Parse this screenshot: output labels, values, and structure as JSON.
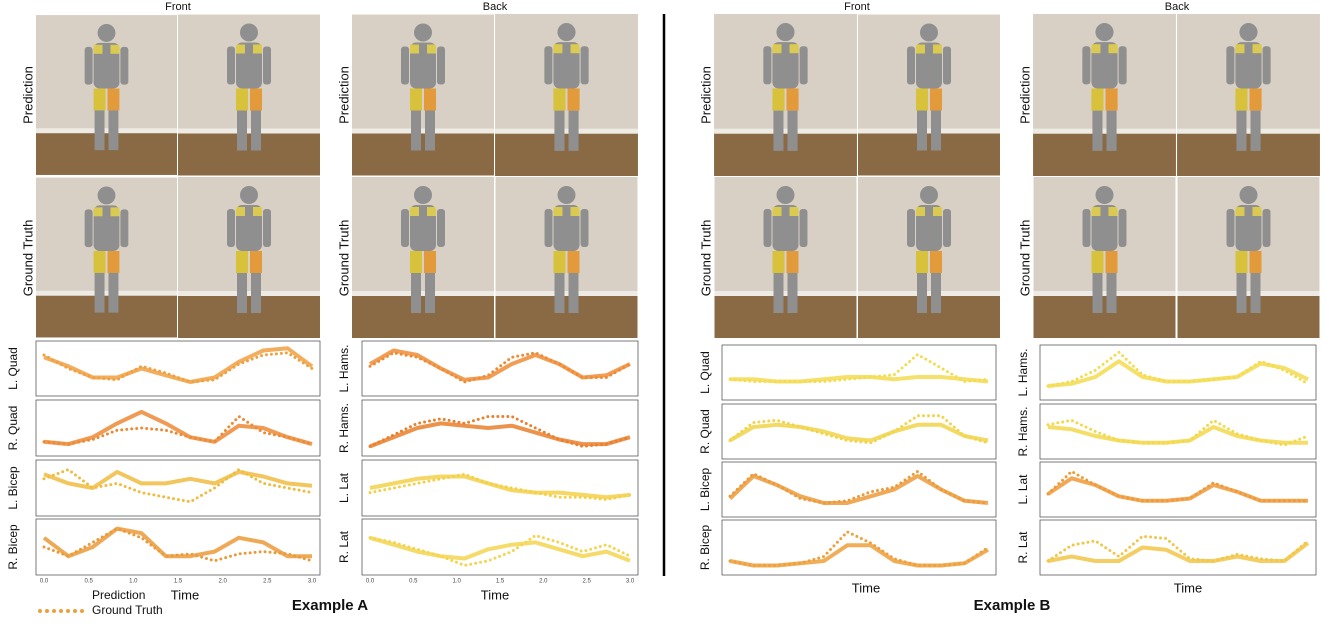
{
  "example_a": {
    "title": "Example A",
    "front": "Front",
    "back": "Back",
    "prediction_label": "Prediction",
    "ground_truth_label": "Ground Truth",
    "time_label": "Time",
    "x_ticks": [
      "0.0",
      "0.5",
      "1.0",
      "1.5",
      "2.0",
      "2.5",
      "3.0"
    ],
    "plots": [
      {
        "label": "L. Quad",
        "color": "#f0a040",
        "prediction": [
          0.75,
          0.55,
          0.3,
          0.3,
          0.5,
          0.35,
          0.2,
          0.3,
          0.65,
          0.9,
          0.95,
          0.55
        ],
        "ground_truth": [
          0.8,
          0.5,
          0.3,
          0.25,
          0.55,
          0.4,
          0.2,
          0.25,
          0.6,
          0.8,
          0.85,
          0.5
        ]
      },
      {
        "label": "R. Quad",
        "color": "#ec8a35",
        "prediction": [
          0.2,
          0.15,
          0.3,
          0.6,
          0.85,
          0.6,
          0.3,
          0.2,
          0.55,
          0.5,
          0.3,
          0.15
        ],
        "ground_truth": [
          0.2,
          0.15,
          0.25,
          0.45,
          0.5,
          0.45,
          0.3,
          0.2,
          0.75,
          0.4,
          0.3,
          0.15
        ]
      },
      {
        "label": "L. Bicep",
        "color": "#f0bc40",
        "prediction": [
          0.8,
          0.6,
          0.5,
          0.85,
          0.6,
          0.6,
          0.7,
          0.6,
          0.85,
          0.75,
          0.6,
          0.55
        ],
        "ground_truth": [
          0.7,
          0.9,
          0.5,
          0.6,
          0.4,
          0.3,
          0.2,
          0.5,
          0.9,
          0.6,
          0.5,
          0.4
        ]
      },
      {
        "label": "R. Bicep",
        "color": "#eb9a3a",
        "prediction": [
          0.7,
          0.3,
          0.5,
          0.9,
          0.8,
          0.3,
          0.3,
          0.4,
          0.7,
          0.6,
          0.3,
          0.3
        ],
        "ground_truth": [
          0.5,
          0.3,
          0.6,
          0.9,
          0.7,
          0.3,
          0.35,
          0.2,
          0.35,
          0.4,
          0.35,
          0.2
        ]
      },
      {
        "label": "L. Hams.",
        "color": "#ee8c35",
        "prediction": [
          0.6,
          0.9,
          0.8,
          0.5,
          0.25,
          0.3,
          0.6,
          0.8,
          0.6,
          0.3,
          0.35,
          0.6
        ],
        "ground_truth": [
          0.55,
          0.85,
          0.75,
          0.5,
          0.2,
          0.35,
          0.75,
          0.85,
          0.6,
          0.3,
          0.3,
          0.6
        ]
      },
      {
        "label": "R. Hams.",
        "color": "#e8802e",
        "prediction": [
          0.1,
          0.3,
          0.5,
          0.6,
          0.55,
          0.5,
          0.55,
          0.4,
          0.25,
          0.15,
          0.15,
          0.3
        ],
        "ground_truth": [
          0.1,
          0.35,
          0.6,
          0.7,
          0.6,
          0.75,
          0.75,
          0.5,
          0.25,
          0.1,
          0.15,
          0.3
        ]
      },
      {
        "label": "L. Lat",
        "color": "#f3d048",
        "prediction": [
          0.5,
          0.6,
          0.7,
          0.75,
          0.75,
          0.6,
          0.45,
          0.4,
          0.4,
          0.35,
          0.3,
          0.35
        ],
        "ground_truth": [
          0.4,
          0.5,
          0.6,
          0.7,
          0.8,
          0.6,
          0.5,
          0.4,
          0.3,
          0.3,
          0.25,
          0.35
        ]
      },
      {
        "label": "R. Lat",
        "color": "#f3d550",
        "prediction": [
          0.7,
          0.55,
          0.4,
          0.3,
          0.25,
          0.45,
          0.55,
          0.6,
          0.45,
          0.3,
          0.4,
          0.2
        ],
        "ground_truth": [
          0.7,
          0.6,
          0.45,
          0.3,
          0.1,
          0.2,
          0.4,
          0.75,
          0.6,
          0.4,
          0.55,
          0.3
        ]
      }
    ]
  },
  "example_b": {
    "title": "Example B",
    "front": "Front",
    "back": "Back",
    "prediction_label": "Prediction",
    "ground_truth_label": "Ground Truth",
    "time_label": "Time",
    "plots": [
      {
        "label": "L. Quad",
        "color": "#f3dc50",
        "prediction": [
          0.35,
          0.35,
          0.3,
          0.3,
          0.35,
          0.4,
          0.4,
          0.35,
          0.4,
          0.4,
          0.35,
          0.3
        ],
        "ground_truth": [
          0.35,
          0.3,
          0.3,
          0.3,
          0.3,
          0.35,
          0.4,
          0.45,
          0.9,
          0.6,
          0.3,
          0.35
        ]
      },
      {
        "label": "R. Quad",
        "color": "#f1d44a",
        "prediction": [
          0.3,
          0.6,
          0.65,
          0.6,
          0.5,
          0.35,
          0.3,
          0.5,
          0.65,
          0.65,
          0.4,
          0.3
        ],
        "ground_truth": [
          0.3,
          0.7,
          0.75,
          0.6,
          0.45,
          0.3,
          0.25,
          0.5,
          0.85,
          0.85,
          0.4,
          0.25
        ]
      },
      {
        "label": "L. Bicep",
        "color": "#ec9a3a",
        "prediction": [
          0.3,
          0.8,
          0.6,
          0.35,
          0.2,
          0.2,
          0.35,
          0.5,
          0.8,
          0.5,
          0.25,
          0.2
        ],
        "ground_truth": [
          0.35,
          0.85,
          0.6,
          0.3,
          0.2,
          0.25,
          0.45,
          0.55,
          0.9,
          0.5,
          0.25,
          0.2
        ]
      },
      {
        "label": "R. Bicep",
        "color": "#eea03c",
        "prediction": [
          0.2,
          0.1,
          0.1,
          0.15,
          0.2,
          0.55,
          0.55,
          0.2,
          0.1,
          0.1,
          0.15,
          0.45
        ],
        "ground_truth": [
          0.2,
          0.1,
          0.1,
          0.15,
          0.3,
          0.85,
          0.6,
          0.25,
          0.1,
          0.1,
          0.15,
          0.5
        ]
      },
      {
        "label": "L. Hams.",
        "color": "#f3dc50",
        "prediction": [
          0.2,
          0.25,
          0.4,
          0.75,
          0.4,
          0.3,
          0.3,
          0.35,
          0.4,
          0.7,
          0.6,
          0.35
        ],
        "ground_truth": [
          0.2,
          0.3,
          0.55,
          0.95,
          0.45,
          0.3,
          0.3,
          0.35,
          0.4,
          0.75,
          0.55,
          0.25
        ]
      },
      {
        "label": "R. Hams.",
        "color": "#f3d84c",
        "prediction": [
          0.6,
          0.55,
          0.4,
          0.3,
          0.25,
          0.25,
          0.3,
          0.6,
          0.4,
          0.3,
          0.25,
          0.25
        ],
        "ground_truth": [
          0.65,
          0.75,
          0.5,
          0.3,
          0.25,
          0.25,
          0.3,
          0.75,
          0.45,
          0.3,
          0.2,
          0.4
        ]
      },
      {
        "label": "L. Lat",
        "color": "#ee9a3a",
        "prediction": [
          0.4,
          0.75,
          0.6,
          0.35,
          0.25,
          0.25,
          0.3,
          0.6,
          0.45,
          0.25,
          0.25,
          0.25
        ],
        "ground_truth": [
          0.4,
          0.9,
          0.6,
          0.35,
          0.25,
          0.25,
          0.3,
          0.65,
          0.45,
          0.25,
          0.25,
          0.25
        ]
      },
      {
        "label": "R. Lat",
        "color": "#f2c646",
        "prediction": [
          0.2,
          0.3,
          0.2,
          0.2,
          0.5,
          0.45,
          0.2,
          0.2,
          0.3,
          0.2,
          0.2,
          0.6
        ],
        "ground_truth": [
          0.2,
          0.55,
          0.65,
          0.3,
          0.75,
          0.7,
          0.25,
          0.2,
          0.35,
          0.25,
          0.2,
          0.65
        ]
      }
    ]
  },
  "legend": {
    "prediction": "Prediction",
    "ground_truth": "Ground Truth"
  }
}
